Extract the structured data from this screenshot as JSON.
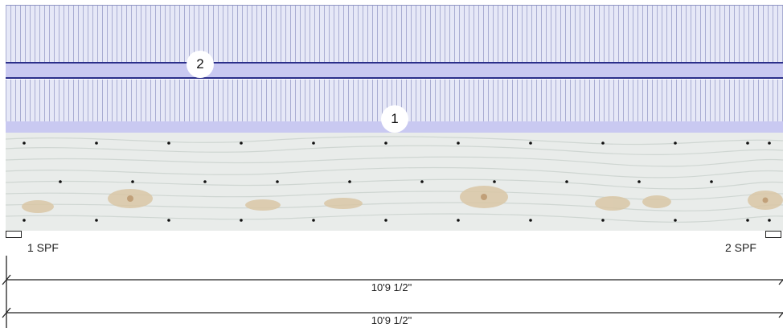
{
  "layers": {
    "layer_2": {
      "number": "2"
    },
    "layer_1": {
      "number": "1"
    }
  },
  "ends": {
    "left_label": "1 SPF",
    "right_label": "2 SPF"
  },
  "dimensions": [
    {
      "value": "10'9 1/2\""
    },
    {
      "value": "10'9 1/2\""
    }
  ],
  "colors": {
    "band": "#c9c9f1",
    "band_outline": "#2b2f8a",
    "stripe": "#a9add2",
    "wood": "#e9ecea"
  }
}
